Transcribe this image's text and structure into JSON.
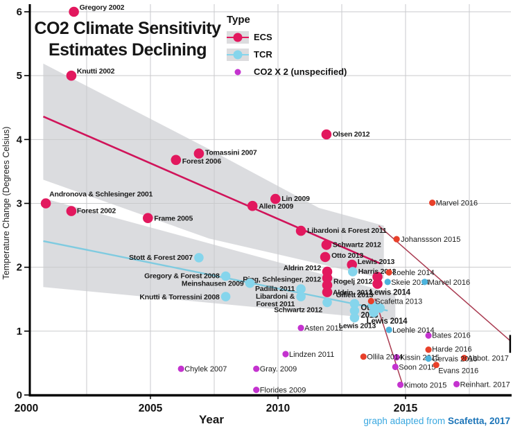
{
  "title_line1": "CO2 Climate Sensitivity",
  "title_line2": "Estimates Declining",
  "axes": {
    "y_label": "Temperature Change (Degrees Celsius)",
    "x_label": "Year",
    "y_ticks": [
      0,
      1,
      2,
      3,
      4,
      5,
      6
    ],
    "x_tick_labels": [
      2000,
      2005,
      2010,
      2015
    ],
    "x_gridlines": [
      2002.5,
      2005,
      2007.5,
      2010,
      2012.5,
      2015,
      2017.5
    ],
    "xlim": [
      2000,
      2018.8
    ],
    "ylim": [
      0,
      6
    ],
    "grid": "on"
  },
  "legend": {
    "title": "Type",
    "entries": [
      {
        "label": "ECS",
        "color": "#e2185e",
        "band": true
      },
      {
        "label": "TCR",
        "color": "#85d5ec",
        "band": true
      },
      {
        "label": "CO2 X 2 (unspecified)",
        "color": "#c433cf",
        "band": false
      }
    ]
  },
  "credit": {
    "prefix": "graph adapted from ",
    "source": "Scafetta, 2017"
  },
  "colors": {
    "ecs": "#e2185e",
    "tcr": "#85d5ec",
    "co2x2": "#c433cf",
    "added_red": "#e8402a",
    "added_blue": "#4db4dd",
    "ecs_trend": "#d0145a",
    "tcr_trend": "#7fcbe0",
    "extension_line": "#a93a50",
    "band": "#d9dadd",
    "grid": "#c9cacc",
    "axis": "#000000"
  },
  "chart_data": {
    "type": "scatter",
    "title": "CO2 Climate Sensitivity Estimates Declining",
    "xlabel": "Year",
    "ylabel": "Temperature Change (Degrees Celsius)",
    "series": [
      {
        "name": "ECS",
        "color": "#e2185e",
        "radius": 7.3,
        "label_style": "orig",
        "points": [
          {
            "label": "Gregory 2002",
            "x": 2002.0,
            "y": 6.0,
            "dx": 8,
            "dy": -3
          },
          {
            "label": "Knutti 2002",
            "x": 2001.9,
            "y": 5.0,
            "dx": 8,
            "dy": -3
          },
          {
            "label": "Andronova & Schlesinger 2001",
            "x": 2000.9,
            "y": 3.0,
            "dx": 5,
            "dy": -10
          },
          {
            "label": "Forest 2002",
            "x": 2001.9,
            "y": 2.88,
            "dx": 8,
            "dy": 3
          },
          {
            "label": "Frame 2005",
            "x": 2004.9,
            "y": 2.77,
            "dx": 9,
            "dy": 4
          },
          {
            "label": "Forest 2006",
            "x": 2006.0,
            "y": 3.68,
            "dx": 9,
            "dy": 5
          },
          {
            "label": "Tomassini 2007",
            "x": 2006.9,
            "y": 3.78,
            "dx": 9,
            "dy": 2
          },
          {
            "label": "Olsen 2012",
            "x": 2011.9,
            "y": 4.08,
            "dx": 9,
            "dy": 3
          },
          {
            "label": "Lin 2009",
            "x": 2009.9,
            "y": 3.07,
            "dx": 9,
            "dy": 3
          },
          {
            "label": "Allen 2009",
            "x": 2009.0,
            "y": 2.96,
            "dx": 9,
            "dy": 4
          },
          {
            "label": "Libardoni & Forest 2011",
            "x": 2010.9,
            "y": 2.57,
            "dx": 9,
            "dy": 3
          },
          {
            "label": "Schwartz 2012",
            "x": 2011.9,
            "y": 2.35,
            "dx": 9,
            "dy": 3
          },
          {
            "label": "Otto 2013",
            "x": 2011.85,
            "y": 2.16,
            "dx": 9,
            "dy": 1
          },
          {
            "label": "Lewis 2013",
            "x": 2012.9,
            "y": 2.04,
            "dx": 8,
            "dy": -1
          },
          {
            "label": "Aldrin 2012",
            "x": 2011.93,
            "y": 1.93,
            "anchor": "e",
            "dx": -9,
            "dy": -2
          },
          {
            "label": "Ring, Schlesinger, 2012",
            "x": 2011.93,
            "y": 1.83,
            "anchor": "e",
            "dx": -9,
            "dy": 5
          },
          {
            "label": "Rogelj 2012",
            "x": 2011.93,
            "y": 1.72,
            "dx": 9,
            "dy": -2
          },
          {
            "label": "Aldrin, 2012",
            "x": 2011.93,
            "y": 1.61,
            "dx": 8,
            "dy": 4
          },
          {
            "label": "",
            "x": 2013.9,
            "y": 1.85
          },
          {
            "label": "Lewis 2014",
            "x": 2013.9,
            "y": 1.74,
            "anchor": "m",
            "dx": 18,
            "dy": 16,
            "bold": true
          }
        ]
      },
      {
        "name": "TCR",
        "color": "#85d5ec",
        "radius": 6.8,
        "label_style": "orig",
        "points": [
          {
            "label": "Stott & Forest 2007",
            "x": 2006.9,
            "y": 2.15,
            "anchor": "e",
            "dx": -9,
            "dy": 3
          },
          {
            "label": "Gregory & Forest 2008",
            "x": 2007.95,
            "y": 1.86,
            "anchor": "e",
            "dx": -9,
            "dy": 3
          },
          {
            "label": "Meinshausen 2009",
            "x": 2008.9,
            "y": 1.75,
            "anchor": "e",
            "dx": -9,
            "dy": 4
          },
          {
            "label": "Knutti & Torressini 2008",
            "x": 2007.95,
            "y": 1.54,
            "anchor": "e",
            "dx": -9,
            "dy": 4
          },
          {
            "label": "Padilla 2011",
            "x": 2010.9,
            "y": 1.66,
            "anchor": "e",
            "dx": -9,
            "dy": 3
          },
          {
            "label": "Libardoni &\nForest 2011",
            "x": 2010.9,
            "y": 1.54,
            "anchor": "e",
            "dx": -9,
            "dy": 3
          },
          {
            "label": "Schwartz 2012",
            "x": 2011.93,
            "y": 1.45,
            "anchor": "e",
            "dx": -7,
            "dy": 14
          },
          {
            "label": "Harris 2013",
            "x": 2012.93,
            "y": 1.93,
            "dx": 8,
            "dy": 3
          },
          {
            "label": "Gillett 2013",
            "x": 2013.0,
            "y": 1.43,
            "anchor": "m",
            "dx": 0,
            "dy": -9
          },
          {
            "label": "Otto\n2013",
            "x": 2013.0,
            "y": 1.32,
            "dx": 9,
            "dy": -1,
            "bold": true
          },
          {
            "label": "Lewis 2013",
            "x": 2013.0,
            "y": 1.21,
            "anchor": "m",
            "dx": 4,
            "dy": 15
          },
          {
            "label": "",
            "x": 2013.7,
            "y": 1.41
          },
          {
            "label": "",
            "x": 2014.0,
            "y": 1.36
          },
          {
            "label": "Lewis 2014",
            "x": 2013.75,
            "y": 1.29,
            "anchor": "m",
            "dx": 19,
            "dy": 16,
            "bold": true
          }
        ]
      },
      {
        "name": "CO2 X 2 (unspecified)",
        "color": "#c433cf",
        "radius": 4.6,
        "label_style": "hand",
        "points": [
          {
            "label": "Chylek 2007",
            "x": 2006.2,
            "y": 0.41,
            "dx": 5,
            "dy": 4
          },
          {
            "label": "Gray. 2009",
            "x": 2009.15,
            "y": 0.41,
            "dx": 5,
            "dy": 4
          },
          {
            "label": "Florides 2009",
            "x": 2009.15,
            "y": 0.08,
            "dx": 5,
            "dy": 4
          },
          {
            "label": "Lindzen 2011",
            "x": 2010.3,
            "y": 0.64,
            "dx": 5,
            "dy": 4
          },
          {
            "label": "Asten 2012",
            "x": 2010.9,
            "y": 1.05,
            "dx": 5,
            "dy": 4
          },
          {
            "label": "Bates 2016",
            "x": 2015.9,
            "y": 0.93,
            "dx": 5,
            "dy": 3
          },
          {
            "label": "Kissin 2015",
            "x": 2014.65,
            "y": 0.59,
            "dx": 5,
            "dy": 4
          },
          {
            "label": "Soon 2015",
            "x": 2014.6,
            "y": 0.44,
            "dx": 5,
            "dy": 4
          },
          {
            "label": "Kimoto 2015",
            "x": 2014.8,
            "y": 0.16,
            "dx": 5,
            "dy": 4
          },
          {
            "label": "Reinhart. 2017",
            "x": 2017.0,
            "y": 0.17,
            "dx": 5,
            "dy": 4
          }
        ]
      },
      {
        "name": "added-red",
        "color": "#e8402a",
        "radius": 4.6,
        "label_style": "hand",
        "points": [
          {
            "label": "Marvel 2016",
            "x": 2016.05,
            "y": 3.01,
            "dx": 5,
            "dy": 4
          },
          {
            "label": "Johanssson 2015",
            "x": 2014.65,
            "y": 2.44,
            "dx": 6,
            "dy": 4
          },
          {
            "label": "Loehle 2014",
            "x": 2014.35,
            "y": 1.92,
            "dx": 5,
            "dy": 4
          },
          {
            "label": "Scafetta 2013",
            "x": 2013.65,
            "y": 1.47,
            "dx": 6,
            "dy": 4
          },
          {
            "label": "Ollila 2014",
            "x": 2013.35,
            "y": 0.6,
            "dx": 5,
            "dy": 4
          },
          {
            "label": "Harde 2016",
            "x": 2015.9,
            "y": 0.71,
            "dx": 5,
            "dy": 3
          },
          {
            "label": "Evans 2016",
            "x": 2016.2,
            "y": 0.47,
            "dx": 3,
            "dy": 12
          },
          {
            "label": "Abbot. 2017",
            "x": 2017.3,
            "y": 0.58,
            "dx": 5,
            "dy": 4
          }
        ]
      },
      {
        "name": "added-blue",
        "color": "#4db4dd",
        "radius": 4.6,
        "label_style": "hand",
        "points": [
          {
            "label": "Skeie 2014",
            "x": 2014.3,
            "y": 1.77,
            "dx": 5,
            "dy": 4
          },
          {
            "label": "Marvel 2016",
            "x": 2015.75,
            "y": 1.77,
            "dx": 5,
            "dy": 4
          },
          {
            "label": "Loehle 2014",
            "x": 2014.35,
            "y": 1.02,
            "dx": 5,
            "dy": 4
          },
          {
            "label": "Gervais 2016",
            "x": 2015.9,
            "y": 0.57,
            "dx": 5,
            "dy": 4
          }
        ]
      }
    ],
    "annotations": {
      "ecs_band": [
        [
          2000.8,
          5.19
        ],
        [
          2007.3,
          3.85
        ],
        [
          2011.6,
          2.93
        ],
        [
          2014.15,
          2.65
        ],
        [
          2014.15,
          1.82
        ],
        [
          2007.3,
          2.45
        ],
        [
          2000.8,
          3.37
        ]
      ],
      "tcr_band": [
        [
          2000.8,
          3.08
        ],
        [
          2014.6,
          1.58
        ],
        [
          2014.6,
          1.17
        ],
        [
          2000.8,
          1.69
        ]
      ],
      "ecs_trend": [
        [
          2000.8,
          4.36
        ],
        [
          2014.0,
          2.06
        ]
      ],
      "tcr_trend": [
        [
          2000.8,
          2.41
        ],
        [
          2014.3,
          1.32
        ]
      ],
      "extension_line_1": [
        [
          2013.95,
          2.65
        ],
        [
          2019.1,
          0.85
        ]
      ],
      "extension_line_2": [
        [
          2013.8,
          1.51
        ],
        [
          2014.87,
          0.18
        ]
      ],
      "endcap": {
        "x": 2019.1,
        "y1": 0.94,
        "y2": 0.66
      }
    }
  }
}
